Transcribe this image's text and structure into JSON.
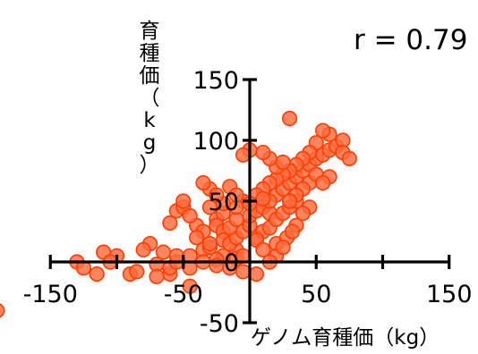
{
  "chart_data": {
    "type": "scatter",
    "xlabel": "ゲノム育種価（kg）",
    "ylabel": "育種価（kg）",
    "annotation": "r = 0.79",
    "xlim": [
      -150,
      150
    ],
    "ylim": [
      -50,
      150
    ],
    "xticks": [
      {
        "value": -150,
        "label": "-150"
      },
      {
        "value": -50,
        "label": "-50"
      },
      {
        "value": 50,
        "label": "50"
      },
      {
        "value": 150,
        "label": "150"
      }
    ],
    "yticks": [
      {
        "value": -50,
        "label": "-50"
      },
      {
        "value": 0,
        "label": "0"
      },
      {
        "value": 50,
        "label": "50"
      },
      {
        "value": 100,
        "label": "100"
      },
      {
        "value": 150,
        "label": "150"
      }
    ],
    "grid": false,
    "colors": {
      "point_fill": "#ff6a3d",
      "point_edge": "#ff3d00",
      "axis": "#000000"
    },
    "points": [
      [
        -190,
        -40
      ],
      [
        -90,
        -10
      ],
      [
        -70,
        -2
      ],
      [
        -60,
        -10
      ],
      [
        -45,
        -5
      ],
      [
        -45,
        -20
      ],
      [
        -35,
        10
      ],
      [
        -30,
        12
      ],
      [
        -10,
        10
      ],
      [
        5,
        20
      ],
      [
        -75,
        15
      ],
      [
        -60,
        32
      ],
      [
        -55,
        42
      ],
      [
        -50,
        45
      ],
      [
        -40,
        30
      ],
      [
        -50,
        50
      ],
      [
        -30,
        60
      ],
      [
        -30,
        45
      ],
      [
        -25,
        35
      ],
      [
        -20,
        40
      ],
      [
        -25,
        30
      ],
      [
        -20,
        25
      ],
      [
        -35,
        25
      ],
      [
        -45,
        38
      ],
      [
        -20,
        18
      ],
      [
        -15,
        15
      ],
      [
        -20,
        5
      ],
      [
        -25,
        2
      ],
      [
        -10,
        3
      ],
      [
        -5,
        5
      ],
      [
        -10,
        20
      ],
      [
        -5,
        25
      ],
      [
        -15,
        28
      ],
      [
        0,
        30
      ],
      [
        10,
        25
      ],
      [
        15,
        28
      ],
      [
        5,
        18
      ],
      [
        -80,
        10
      ],
      [
        -100,
        5
      ],
      [
        -110,
        8
      ],
      [
        -130,
        0
      ],
      [
        -125,
        -5
      ],
      [
        -115,
        -10
      ],
      [
        -105,
        0
      ],
      [
        -85,
        -8
      ],
      [
        -70,
        -12
      ],
      [
        -60,
        -5
      ],
      [
        -55,
        0
      ],
      [
        -65,
        8
      ],
      [
        -55,
        5
      ],
      [
        -45,
        5
      ],
      [
        -35,
        0
      ],
      [
        -25,
        -3
      ],
      [
        -15,
        -5
      ],
      [
        -5,
        -8
      ],
      [
        5,
        -10
      ],
      [
        -30,
        15
      ],
      [
        -40,
        20
      ],
      [
        10,
        10
      ],
      [
        20,
        15
      ],
      [
        -10,
        35
      ],
      [
        0,
        38
      ],
      [
        5,
        42
      ],
      [
        10,
        45
      ],
      [
        15,
        40
      ],
      [
        20,
        35
      ],
      [
        25,
        40
      ],
      [
        30,
        45
      ],
      [
        35,
        50
      ],
      [
        20,
        55
      ],
      [
        25,
        60
      ],
      [
        30,
        65
      ],
      [
        35,
        70
      ],
      [
        40,
        75
      ],
      [
        45,
        80
      ],
      [
        50,
        85
      ],
      [
        55,
        88
      ],
      [
        60,
        92
      ],
      [
        65,
        95
      ],
      [
        70,
        100
      ],
      [
        60,
        105
      ],
      [
        55,
        108
      ],
      [
        50,
        98
      ],
      [
        45,
        90
      ],
      [
        40,
        85
      ],
      [
        35,
        80
      ],
      [
        30,
        75
      ],
      [
        25,
        72
      ],
      [
        20,
        68
      ],
      [
        15,
        65
      ],
      [
        10,
        60
      ],
      [
        5,
        55
      ],
      [
        -5,
        50
      ],
      [
        -10,
        45
      ],
      [
        45,
        65
      ],
      [
        50,
        72
      ],
      [
        40,
        60
      ],
      [
        35,
        55
      ],
      [
        30,
        50
      ],
      [
        15,
        50
      ],
      [
        10,
        52
      ],
      [
        0,
        48
      ],
      [
        20,
        78
      ],
      [
        25,
        82
      ],
      [
        15,
        85
      ],
      [
        10,
        90
      ],
      [
        0,
        92
      ],
      [
        -5,
        88
      ],
      [
        30,
        118
      ],
      [
        70,
        90
      ],
      [
        75,
        85
      ],
      [
        60,
        70
      ],
      [
        55,
        65
      ],
      [
        -15,
        62
      ],
      [
        -10,
        55
      ],
      [
        -20,
        48
      ],
      [
        45,
        45
      ],
      [
        40,
        40
      ],
      [
        35,
        30
      ],
      [
        28,
        20
      ],
      [
        20,
        5
      ],
      [
        15,
        0
      ],
      [
        25,
        12
      ],
      [
        32,
        25
      ],
      [
        -25,
        55
      ],
      [
        -35,
        65
      ]
    ]
  }
}
